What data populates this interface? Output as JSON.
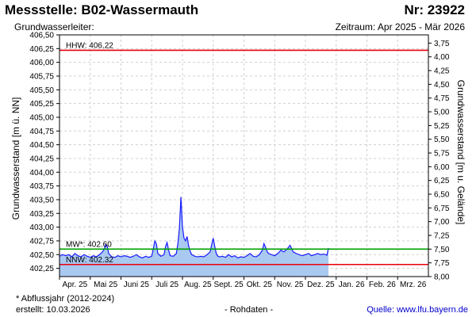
{
  "header": {
    "title": "Messstelle: B02-Wassermauth",
    "number": "Nr: 23922",
    "subtitle": "Grundwasserleiter:",
    "period": "Zeitraum: Apr 2025 - Mär 2026"
  },
  "footer": {
    "note": "* Abflussjahr (2012-2024)",
    "created": "erstellt:  10.03.2026",
    "rawdata": "- Rohdaten -",
    "source_label": "Quelle: ",
    "source_link": "www.lfu.bayern.de"
  },
  "chart_data": {
    "type": "area",
    "ylabel": "Grundwasserstand [m ü. NN]",
    "y2label": "Grundwasserstand [m u. Gelände]",
    "ylim": [
      402.1,
      406.5
    ],
    "y2lim": [
      8.0,
      3.6
    ],
    "yticks": [
      "406,50",
      "406,25",
      "406,00",
      "405,75",
      "405,50",
      "405,25",
      "405,00",
      "404,75",
      "404,50",
      "404,25",
      "404,00",
      "403,75",
      "403,50",
      "403,25",
      "403,00",
      "402,75",
      "402,50",
      "402,25"
    ],
    "yticks_values": [
      406.5,
      406.25,
      406.0,
      405.75,
      405.5,
      405.25,
      405.0,
      404.75,
      404.5,
      404.25,
      404.0,
      403.75,
      403.5,
      403.25,
      403.0,
      402.75,
      402.5,
      402.25
    ],
    "y2ticks": [
      "3,75",
      "4,00",
      "4,25",
      "4,50",
      "4,75",
      "5,00",
      "5,25",
      "5,50",
      "5,75",
      "6,00",
      "6,25",
      "6,50",
      "6,75",
      "7,00",
      "7,25",
      "7,50",
      "7,75",
      "8,00"
    ],
    "y2ticks_values": [
      3.75,
      4.0,
      4.25,
      4.5,
      4.75,
      5.0,
      5.25,
      5.5,
      5.75,
      6.0,
      6.25,
      6.5,
      6.75,
      7.0,
      7.25,
      7.5,
      7.75,
      8.0
    ],
    "xlim": [
      0,
      12
    ],
    "xticks": [
      "Apr. 25",
      "Mai 25",
      "Juni 25",
      "Juli 25",
      "Aug. 25",
      "Sept. 25",
      "Okt. 25",
      "Nov. 25",
      "Dez. 25",
      "Jan. 26",
      "Feb. 26",
      "Mrz. 26"
    ],
    "reference_lines": [
      {
        "label": "HHW: 406.22",
        "value": 406.22,
        "color": "#e8000b"
      },
      {
        "label": "MW*: 402.60",
        "value": 402.6,
        "color": "#00a000"
      },
      {
        "label": "NNW: 402.32",
        "value": 402.32,
        "color": "#e8000b"
      }
    ],
    "series": [
      {
        "color": "#1a1aff",
        "fill": "#a9c9f0",
        "x": [
          0.0,
          0.1,
          0.2,
          0.3,
          0.4,
          0.5,
          0.6,
          0.7,
          0.8,
          0.9,
          1.0,
          1.1,
          1.2,
          1.3,
          1.4,
          1.45,
          1.5,
          1.55,
          1.6,
          1.7,
          1.8,
          1.9,
          2.0,
          2.1,
          2.2,
          2.3,
          2.4,
          2.5,
          2.6,
          2.7,
          2.8,
          2.9,
          3.0,
          3.05,
          3.1,
          3.15,
          3.2,
          3.3,
          3.4,
          3.45,
          3.5,
          3.55,
          3.6,
          3.7,
          3.8,
          3.85,
          3.9,
          3.95,
          4.0,
          4.05,
          4.1,
          4.15,
          4.2,
          4.25,
          4.3,
          4.4,
          4.5,
          4.6,
          4.7,
          4.8,
          4.9,
          4.95,
          5.0,
          5.05,
          5.1,
          5.15,
          5.2,
          5.3,
          5.4,
          5.5,
          5.6,
          5.7,
          5.8,
          5.9,
          6.0,
          6.1,
          6.2,
          6.3,
          6.4,
          6.5,
          6.6,
          6.65,
          6.7,
          6.75,
          6.8,
          6.9,
          7.0,
          7.1,
          7.2,
          7.3,
          7.4,
          7.5,
          7.6,
          7.7,
          7.8,
          7.9,
          8.0,
          8.1,
          8.2,
          8.3,
          8.4,
          8.5,
          8.6,
          8.7,
          8.75
        ],
        "y": [
          402.47,
          402.5,
          402.48,
          402.5,
          402.46,
          402.52,
          402.48,
          402.46,
          402.5,
          402.47,
          402.45,
          402.48,
          402.46,
          402.5,
          402.55,
          402.6,
          402.68,
          402.66,
          402.52,
          402.46,
          402.45,
          402.48,
          402.46,
          402.48,
          402.47,
          402.45,
          402.47,
          402.5,
          402.46,
          402.44,
          402.47,
          402.45,
          402.47,
          402.6,
          402.75,
          402.7,
          402.52,
          402.47,
          402.5,
          402.65,
          402.72,
          402.58,
          402.48,
          402.47,
          402.52,
          402.7,
          402.98,
          403.55,
          403.0,
          402.8,
          402.75,
          402.83,
          402.66,
          402.56,
          402.5,
          402.47,
          402.46,
          402.47,
          402.46,
          402.5,
          402.55,
          402.68,
          402.8,
          402.65,
          402.52,
          402.47,
          402.46,
          402.47,
          402.45,
          402.5,
          402.46,
          402.48,
          402.44,
          402.46,
          402.45,
          402.48,
          402.52,
          402.47,
          402.46,
          402.5,
          402.58,
          402.7,
          402.64,
          402.56,
          402.52,
          402.5,
          402.48,
          402.52,
          402.58,
          402.55,
          402.6,
          402.67,
          402.55,
          402.52,
          402.5,
          402.48,
          402.5,
          402.52,
          402.48,
          402.5,
          402.52,
          402.5,
          402.51,
          402.49,
          402.62
        ]
      }
    ]
  }
}
